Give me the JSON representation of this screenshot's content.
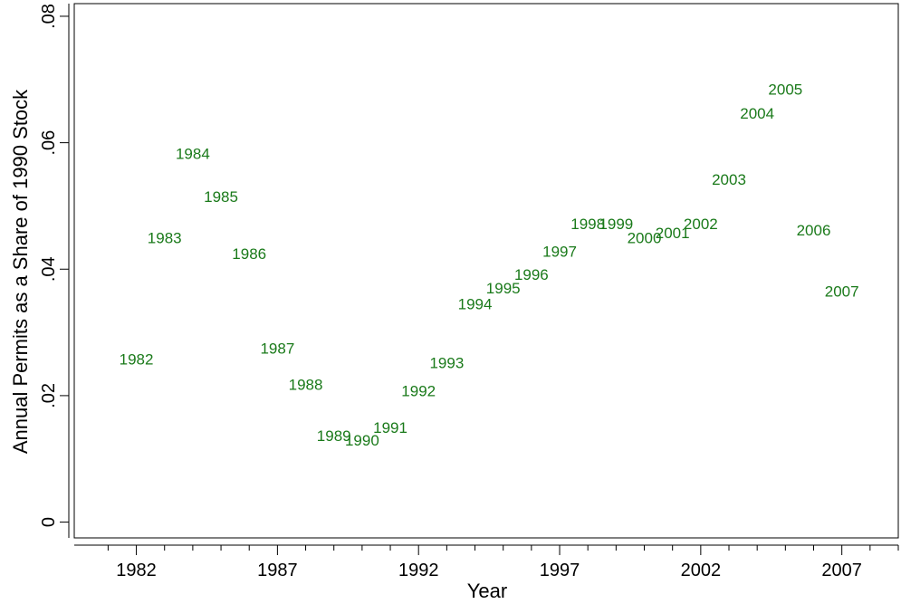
{
  "chart_data": {
    "type": "scatter",
    "title": "",
    "xlabel": "Year",
    "ylabel": "Annual Permits as a Share of 1990 Stock",
    "xlim": [
      1979.8,
      2009.0
    ],
    "ylim": [
      -0.0025,
      0.082
    ],
    "x_ticks": [
      1982,
      1987,
      1992,
      1997,
      2002,
      2007
    ],
    "x_tick_labels": [
      "1982",
      "1987",
      "1992",
      "1997",
      "2002",
      "2007"
    ],
    "x_minor_ticks": [
      1981,
      1983,
      1984,
      1985,
      1986,
      1988,
      1989,
      1990,
      1991,
      1993,
      1994,
      1995,
      1996,
      1998,
      1999,
      2000,
      2001,
      2003,
      2004,
      2005,
      2006,
      2008,
      2009
    ],
    "y_ticks": [
      0,
      0.02,
      0.04,
      0.06,
      0.08
    ],
    "y_tick_labels": [
      "0",
      ".02",
      ".04",
      ".06",
      ".08"
    ],
    "grid": false,
    "legend": "none",
    "marker_color": "#1a7a1a",
    "points": [
      {
        "x": 1982,
        "y": 0.0258,
        "label": "1982"
      },
      {
        "x": 1983,
        "y": 0.045,
        "label": "1983"
      },
      {
        "x": 1984,
        "y": 0.0583,
        "label": "1984"
      },
      {
        "x": 1985,
        "y": 0.0515,
        "label": "1985"
      },
      {
        "x": 1986,
        "y": 0.0425,
        "label": "1986"
      },
      {
        "x": 1987,
        "y": 0.0275,
        "label": "1987"
      },
      {
        "x": 1988,
        "y": 0.0218,
        "label": "1988"
      },
      {
        "x": 1989,
        "y": 0.0137,
        "label": "1989"
      },
      {
        "x": 1990,
        "y": 0.013,
        "label": "1990"
      },
      {
        "x": 1991,
        "y": 0.015,
        "label": "1991"
      },
      {
        "x": 1992,
        "y": 0.0208,
        "label": "1992"
      },
      {
        "x": 1993,
        "y": 0.0252,
        "label": "1993"
      },
      {
        "x": 1994,
        "y": 0.0345,
        "label": "1994"
      },
      {
        "x": 1995,
        "y": 0.037,
        "label": "1995"
      },
      {
        "x": 1996,
        "y": 0.0392,
        "label": "1996"
      },
      {
        "x": 1997,
        "y": 0.0428,
        "label": "1997"
      },
      {
        "x": 1998,
        "y": 0.0472,
        "label": "1998"
      },
      {
        "x": 1999,
        "y": 0.0472,
        "label": "1999"
      },
      {
        "x": 2000,
        "y": 0.045,
        "label": "2000"
      },
      {
        "x": 2001,
        "y": 0.0458,
        "label": "2001"
      },
      {
        "x": 2002,
        "y": 0.0472,
        "label": "2002"
      },
      {
        "x": 2003,
        "y": 0.0542,
        "label": "2003"
      },
      {
        "x": 2004,
        "y": 0.0647,
        "label": "2004"
      },
      {
        "x": 2005,
        "y": 0.0685,
        "label": "2005"
      },
      {
        "x": 2006,
        "y": 0.0462,
        "label": "2006"
      },
      {
        "x": 2007,
        "y": 0.0365,
        "label": "2007"
      }
    ]
  }
}
